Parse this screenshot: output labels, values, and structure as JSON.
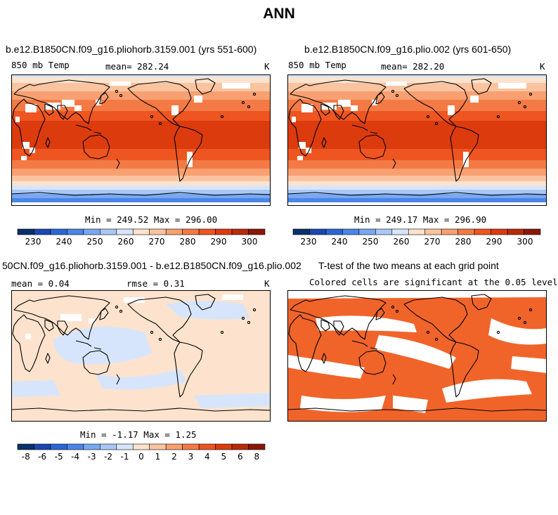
{
  "main_title": "ANN",
  "colors": {
    "abs_levels": [
      "#08306b",
      "#1947b0",
      "#2b66d6",
      "#4a86e8",
      "#79a8f0",
      "#a9c7f5",
      "#d6e5fb",
      "#fde3cd",
      "#fbc4a0",
      "#f8a071",
      "#f47a45",
      "#ee5520",
      "#dc3b0e",
      "#b82a08",
      "#8a1806"
    ],
    "diff_levels": [
      "#08306b",
      "#1947b0",
      "#2b66d6",
      "#4a86e8",
      "#79a8f0",
      "#a9c7f5",
      "#d6e5fb",
      "#fde3cd",
      "#fbc4a0",
      "#f8a071",
      "#f47a45",
      "#ee5520",
      "#dc3b0e",
      "#b82a08",
      "#8a1806"
    ],
    "ttest_fill": "#f0642a"
  },
  "chart_data": [
    {
      "type": "heatmap",
      "id": "panel-1",
      "title": "b.e12.B1850CN.f09_g16.pliohorb.3159.001 (yrs 551-600)",
      "left_label": "850 mb Temp",
      "center_label": "mean= 282.24",
      "units": "K",
      "stats": "Min = 249.52 Max = 296.00",
      "colorbar": {
        "ticks": [
          "230",
          "240",
          "250",
          "260",
          "270",
          "280",
          "290",
          "300"
        ]
      }
    },
    {
      "type": "heatmap",
      "id": "panel-2",
      "title": "b.e12.B1850CN.f09_g16.plio.002 (yrs 601-650)",
      "left_label": "850 mb Temp",
      "center_label": "mean= 282.20",
      "units": "K",
      "stats": "Min = 249.17 Max = 296.90",
      "colorbar": {
        "ticks": [
          "230",
          "240",
          "250",
          "260",
          "270",
          "280",
          "290",
          "300"
        ]
      }
    },
    {
      "type": "heatmap",
      "id": "panel-3",
      "title": "50CN.f09_g16.pliohorb.3159.001 - b.e12.B1850CN.f09_g16.plio.002",
      "left_label": "mean =    0.04",
      "center_label": "rmse =    0.31",
      "units": "K",
      "stats": "Min =  -1.17 Max =    1.25",
      "colorbar": {
        "ticks": [
          "-8",
          "-6",
          "-5",
          "-4",
          "-3",
          "-2",
          "-1",
          "0",
          "1",
          "2",
          "3",
          "4",
          "5",
          "6",
          "8"
        ]
      }
    },
    {
      "type": "heatmap",
      "id": "panel-4",
      "title": "T-test of the two means at each grid point",
      "subtitle": "Colored cells are significant at the 0.05 level"
    }
  ]
}
